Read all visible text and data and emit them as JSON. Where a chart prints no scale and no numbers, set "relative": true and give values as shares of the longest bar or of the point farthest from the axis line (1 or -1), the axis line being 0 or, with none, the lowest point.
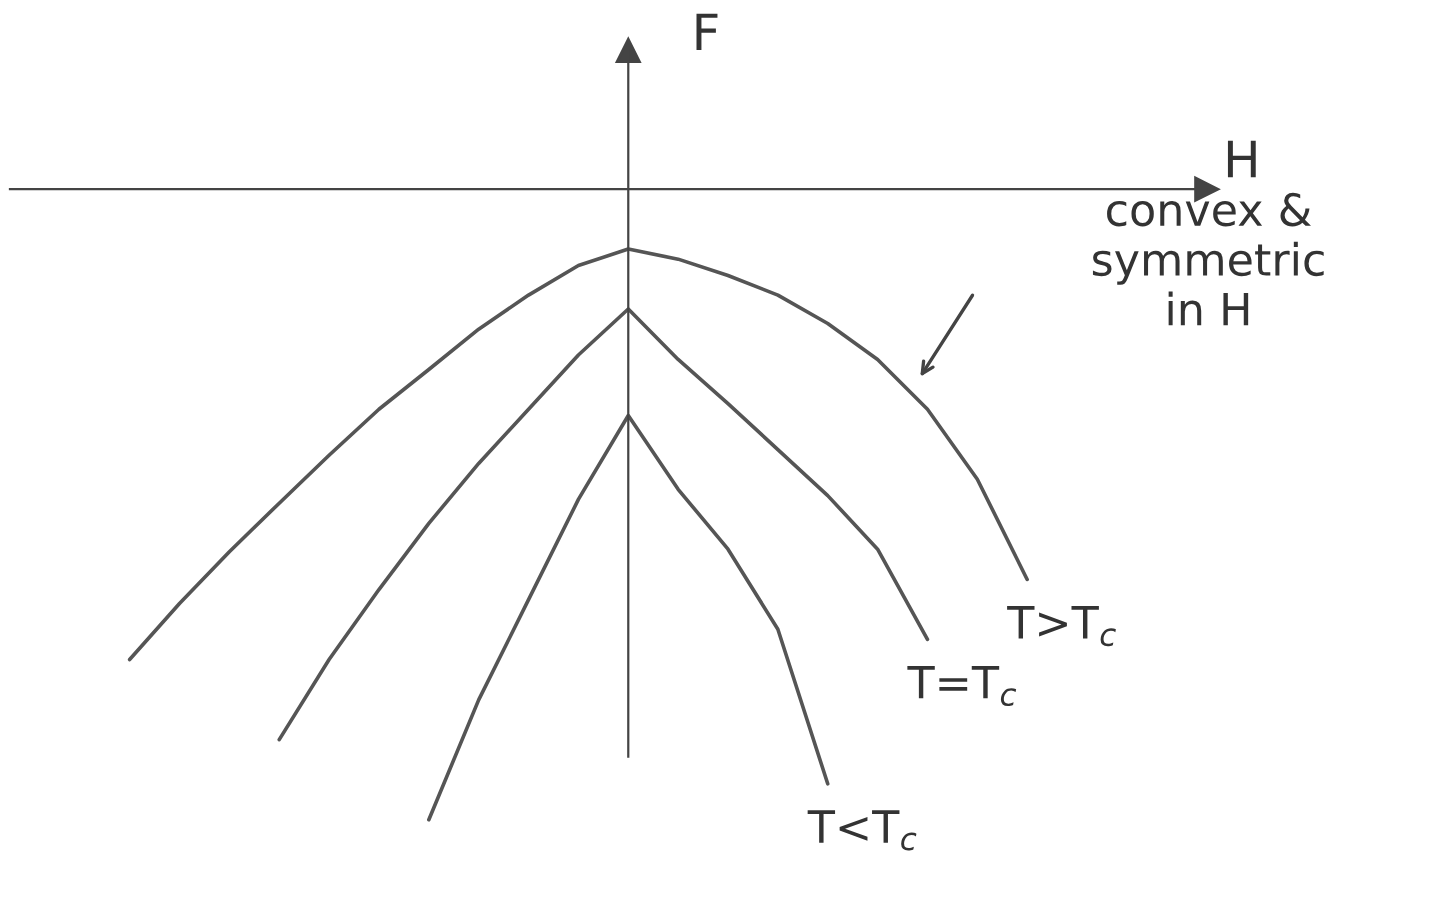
{
  "chart_data": {
    "type": "line",
    "relative": true,
    "xlabel": "H",
    "ylabel": "F",
    "marker": "none",
    "line_style": "solid",
    "categories": [
      null,
      null,
      null,
      null,
      null,
      null,
      null,
      null,
      null,
      null,
      null,
      null,
      null,
      null,
      null,
      null,
      null,
      null,
      null,
      null
    ],
    "annotations": [
      "convex &\nsymmetric\nin H"
    ],
    "series": [
      {
        "name": "T>T$_{c}$",
        "color": "#555555",
        "values": [
          -0.746,
          -0.657,
          -0.575,
          -0.498,
          -0.422,
          -0.349,
          -0.286,
          -0.222,
          -0.168,
          -0.121,
          -0.095,
          -0.111,
          -0.137,
          -0.168,
          -0.213,
          -0.27,
          -0.349,
          -0.46,
          -0.619,
          null
        ]
      },
      {
        "name": "T=T$_{c}$",
        "color": "#555555",
        "values": [
          null,
          null,
          null,
          -0.873,
          -0.746,
          -0.635,
          -0.53,
          -0.435,
          -0.349,
          -0.263,
          -0.19,
          -0.27,
          -0.34,
          -0.413,
          -0.486,
          -0.571,
          -0.714,
          null,
          null,
          null
        ]
      },
      {
        "name": "T<T$_{c}$",
        "color": "#555555",
        "values": [
          null,
          null,
          null,
          null,
          null,
          null,
          -1.0,
          -0.81,
          -0.651,
          -0.492,
          -0.359,
          -0.476,
          -0.571,
          -0.698,
          -0.943,
          null,
          null,
          null,
          null,
          null
        ]
      }
    ]
  }
}
